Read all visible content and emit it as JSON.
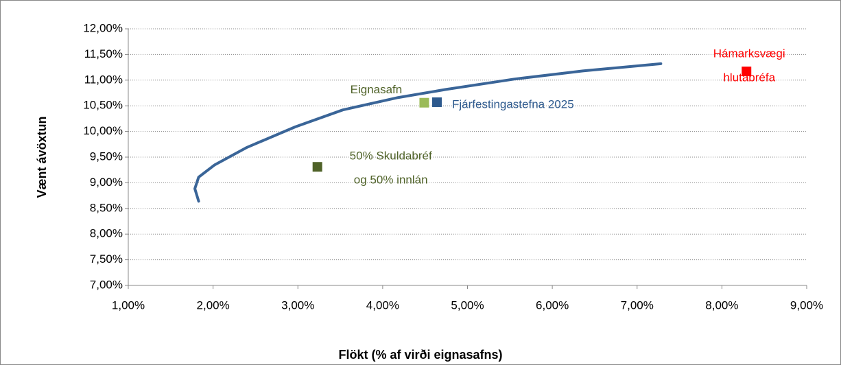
{
  "chart_data": {
    "type": "scatter",
    "x_label": "Flökt (% af virði eignasafns)",
    "y_label": "Vænt ávöxtun",
    "xlim": [
      1,
      9
    ],
    "ylim": [
      7,
      12
    ],
    "xticks": [
      {
        "value": 1,
        "label": "1,00%"
      },
      {
        "value": 2,
        "label": "2,00%"
      },
      {
        "value": 3,
        "label": "3,00%"
      },
      {
        "value": 4,
        "label": "4,00%"
      },
      {
        "value": 5,
        "label": "5,00%"
      },
      {
        "value": 6,
        "label": "6,00%"
      },
      {
        "value": 7,
        "label": "7,00%"
      },
      {
        "value": 8,
        "label": "8,00%"
      },
      {
        "value": 9,
        "label": "9,00%"
      }
    ],
    "yticks": [
      {
        "value": 7,
        "label": "7,00%"
      },
      {
        "value": 7.5,
        "label": "7,50%"
      },
      {
        "value": 8,
        "label": "8,00%"
      },
      {
        "value": 8.5,
        "label": "8,50%"
      },
      {
        "value": 9,
        "label": "9,00%"
      },
      {
        "value": 9.5,
        "label": "9,50%"
      },
      {
        "value": 10,
        "label": "10,00%"
      },
      {
        "value": 10.5,
        "label": "10,50%"
      },
      {
        "value": 11,
        "label": "11,00%"
      },
      {
        "value": 11.5,
        "label": "11,50%"
      },
      {
        "value": 12,
        "label": "12,00%"
      }
    ],
    "grid": "y",
    "series": [
      {
        "mode": "line",
        "color": "#3a6598",
        "x": [
          1.83,
          1.785,
          1.83,
          2.02,
          2.4,
          2.97,
          3.53,
          4.18,
          4.75,
          5.55,
          6.36,
          7.28
        ],
        "y": [
          8.64,
          8.885,
          9.11,
          9.35,
          9.69,
          10.09,
          10.42,
          10.66,
          10.82,
          11.02,
          11.18,
          11.32
        ]
      },
      {
        "mode": "point",
        "name": [
          "Eignasafn"
        ],
        "color": "#9bbb59",
        "label_color": "#4f6228",
        "x": [
          4.49
        ],
        "y": [
          10.56
        ]
      },
      {
        "mode": "point",
        "name": [
          "Fjárfestingastefna 2025"
        ],
        "color": "#2e5a8e",
        "label_color": "#2e5a8e",
        "x": [
          4.64
        ],
        "y": [
          10.57
        ]
      },
      {
        "mode": "point",
        "name": [
          "50% Skuldabréf",
          "og 50% innlán"
        ],
        "color": "#4f6228",
        "label_color": "#4f6228",
        "x": [
          3.23
        ],
        "y": [
          9.31
        ]
      },
      {
        "mode": "point",
        "name": [
          "Hámarksvægi",
          "hlutabréfa"
        ],
        "color": "#ff0000",
        "label_color": "#ff0000",
        "x": [
          8.29
        ],
        "y": [
          11.17
        ]
      }
    ]
  }
}
